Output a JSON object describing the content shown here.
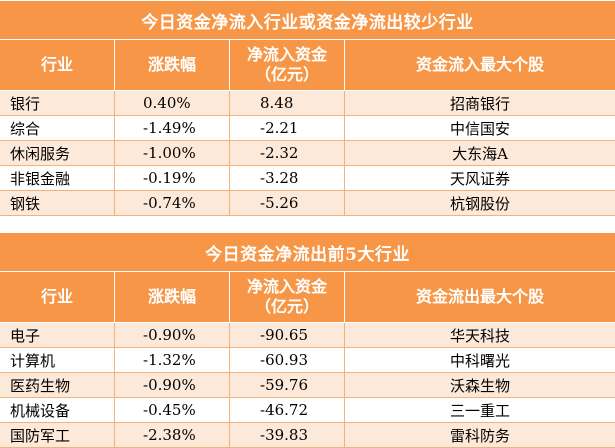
{
  "table1": {
    "title": "今日资金净流入行业或资金净流出较少行业",
    "headers": [
      "行业",
      "涨跌幅",
      "净流入资金\n（亿元）",
      "资金流入最大个股"
    ],
    "rows": [
      {
        "industry": "银行",
        "change": "0.40%",
        "net_flow": "8.48",
        "top_stock": "招商银行"
      },
      {
        "industry": "综合",
        "change": "-1.49%",
        "net_flow": "-2.21",
        "top_stock": "中信国安"
      },
      {
        "industry": "休闲服务",
        "change": "-1.00%",
        "net_flow": "-2.32",
        "top_stock": "大东海A"
      },
      {
        "industry": "非银金融",
        "change": "-0.19%",
        "net_flow": "-3.28",
        "top_stock": "天风证券"
      },
      {
        "industry": "钢铁",
        "change": "-0.74%",
        "net_flow": "-5.26",
        "top_stock": "杭钢股份"
      }
    ]
  },
  "table2": {
    "title": "今日资金净流出前5大行业",
    "headers": [
      "行业",
      "涨跌幅",
      "净流入资金\n（亿元）",
      "资金流出最大个股"
    ],
    "rows": [
      {
        "industry": "电子",
        "change": "-0.90%",
        "net_flow": "-90.65",
        "top_stock": "华天科技"
      },
      {
        "industry": "计算机",
        "change": "-1.32%",
        "net_flow": "-60.93",
        "top_stock": "中科曙光"
      },
      {
        "industry": "医药生物",
        "change": "-0.90%",
        "net_flow": "-59.76",
        "top_stock": "沃森生物"
      },
      {
        "industry": "机械设备",
        "change": "-0.45%",
        "net_flow": "-46.72",
        "top_stock": "三一重工"
      },
      {
        "industry": "国防军工",
        "change": "-2.38%",
        "net_flow": "-39.83",
        "top_stock": "雷科防务"
      }
    ]
  }
}
